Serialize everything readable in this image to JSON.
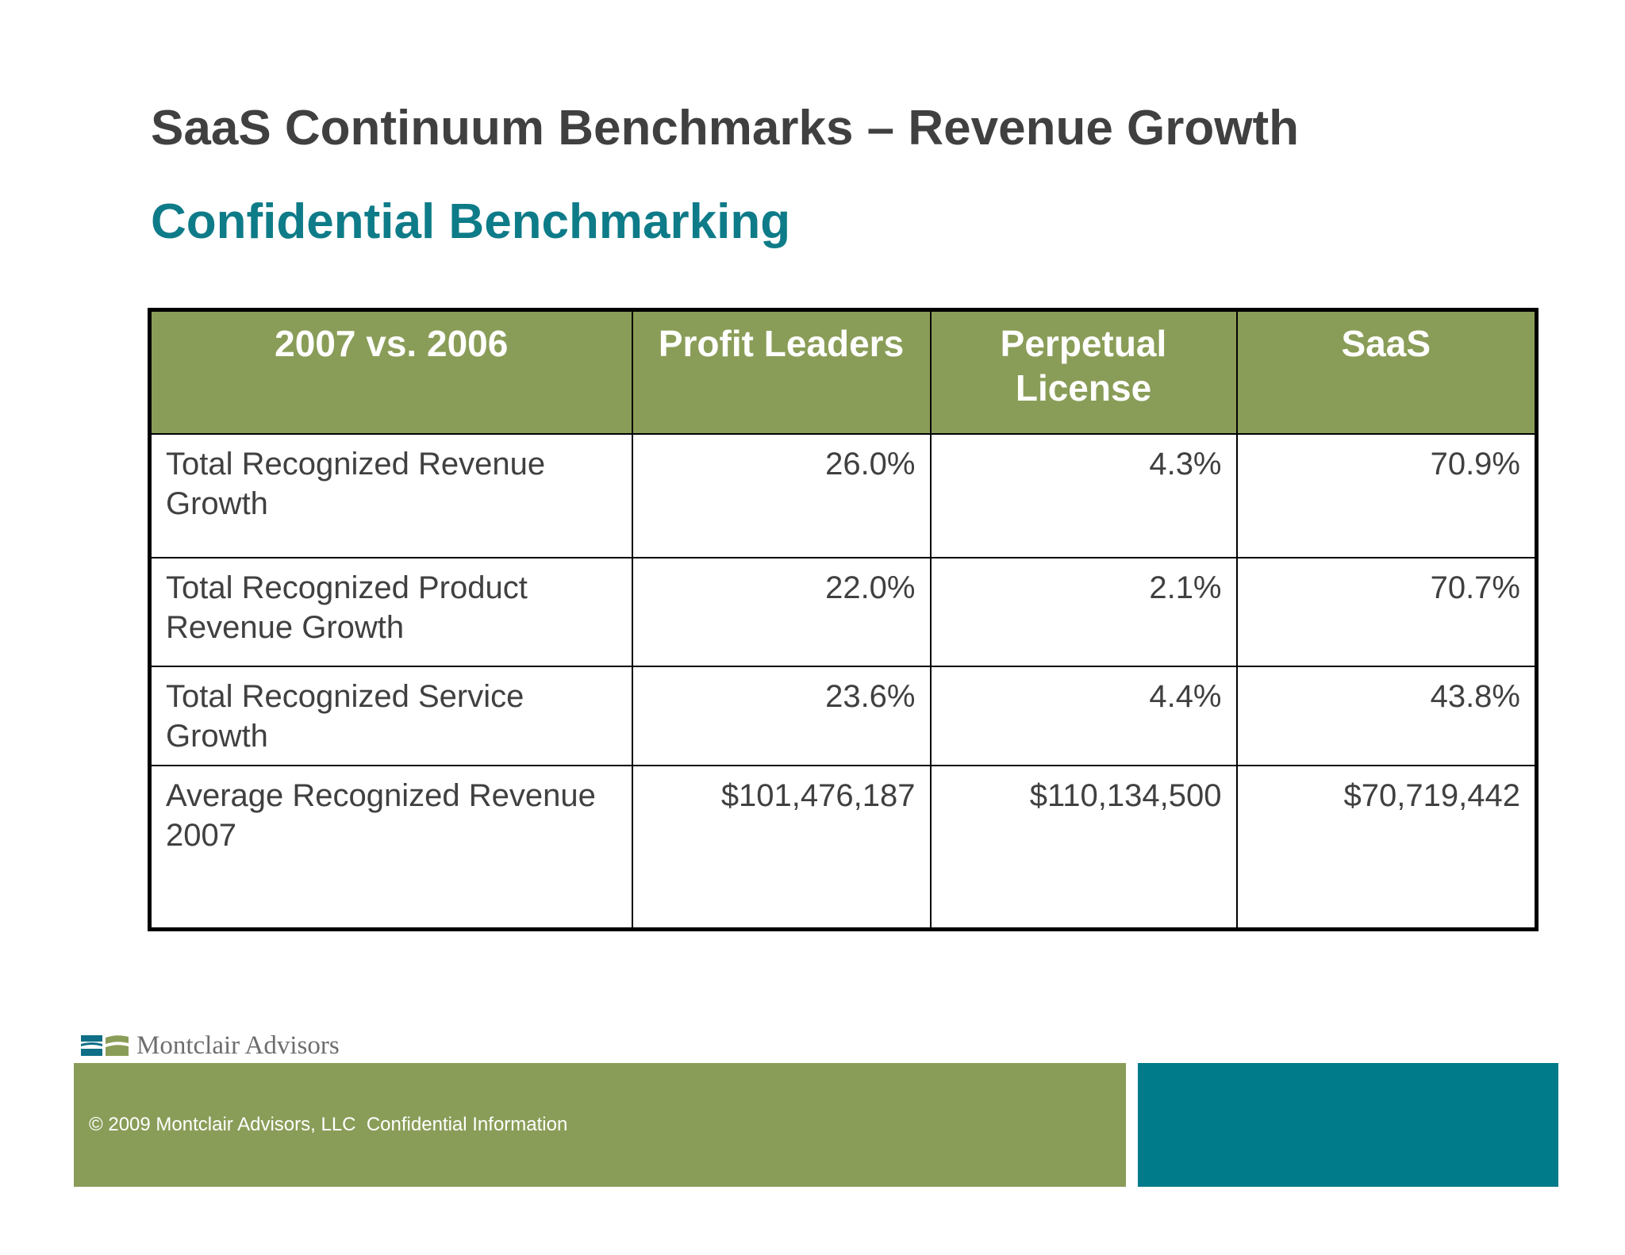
{
  "title": "SaaS Continuum Benchmarks – Revenue Growth",
  "subtitle": "Confidential Benchmarking",
  "table": {
    "headers": [
      "2007 vs. 2006",
      "Profit Leaders",
      "Perpetual License",
      "SaaS"
    ],
    "rows": [
      {
        "label": "Total Recognized Revenue Growth",
        "values": [
          "26.0%",
          "4.3%",
          "70.9%"
        ]
      },
      {
        "label": "Total Recognized Product Revenue Growth",
        "values": [
          "22.0%",
          "2.1%",
          "70.7%"
        ]
      },
      {
        "label": "Total Recognized Service Growth",
        "values": [
          "23.6%",
          "4.4%",
          "43.8%"
        ]
      },
      {
        "label": "Average Recognized Revenue 2007",
        "values": [
          "$101,476,187",
          "$110,134,500",
          "$70,719,442"
        ]
      }
    ]
  },
  "footer": {
    "logo_text": "Montclair Advisors",
    "copyright": "© 2009 Montclair Advisors, LLC  Confidential Information"
  },
  "colors": {
    "header_green": "#8a9d58",
    "teal": "#007b8a",
    "title_gray": "#404040",
    "subtitle_teal": "#0e7b88"
  }
}
